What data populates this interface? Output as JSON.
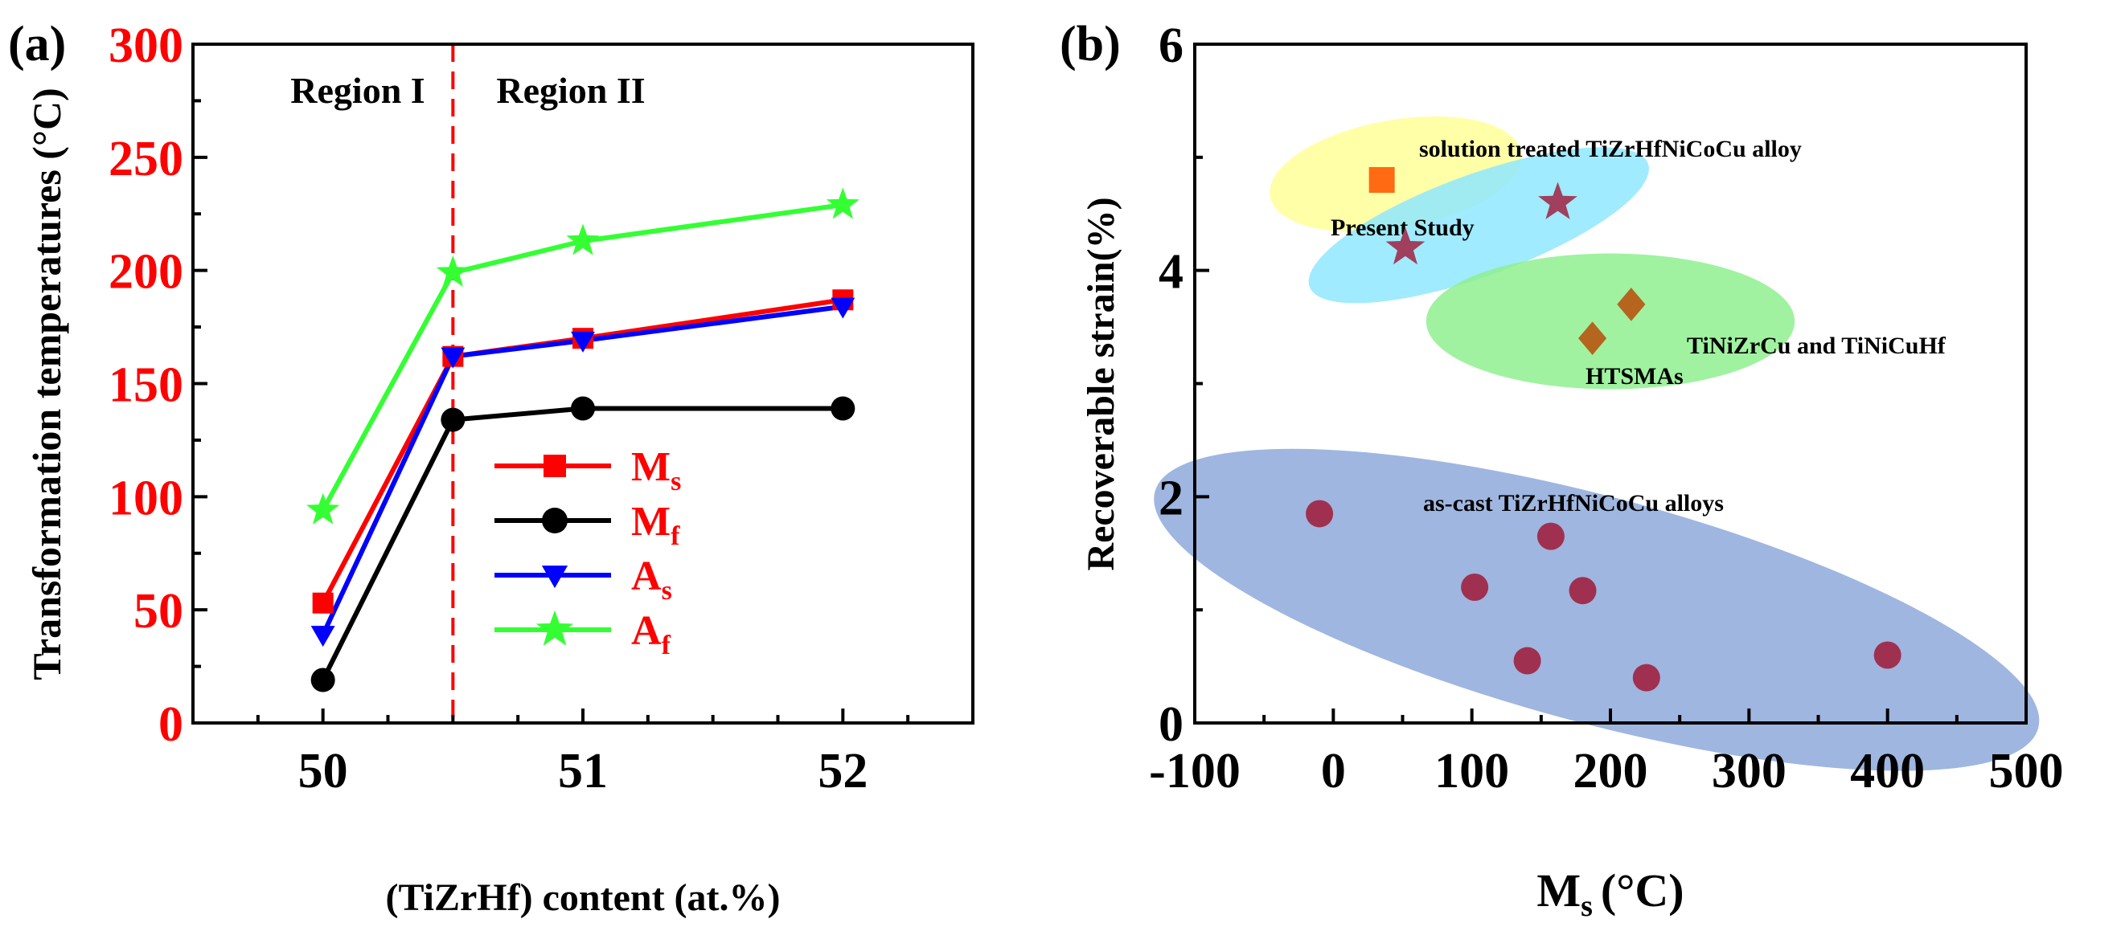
{
  "chart_data": [
    {
      "panel_label": "(a)",
      "type": "line",
      "xlabel": "(TiZrHf) content (at.%)",
      "ylabel": "Transformation temperatures (°C)",
      "xlim": [
        49.5,
        52.5
      ],
      "ylim": [
        0,
        300
      ],
      "x_ticks": [
        "50",
        "51",
        "52"
      ],
      "y_ticks": [
        "0",
        "50",
        "100",
        "150",
        "200",
        "250",
        "300"
      ],
      "x": [
        50,
        50.5,
        51,
        52
      ],
      "divider_x": 50.5,
      "regions": [
        "Region I",
        "Region II"
      ],
      "series": [
        {
          "name": "M",
          "sub": "s",
          "color": "#ff0000",
          "marker": "square",
          "values": [
            53,
            162,
            170,
            187
          ]
        },
        {
          "name": "M",
          "sub": "f",
          "color": "#000000",
          "marker": "circle",
          "values": [
            19,
            134,
            139,
            139
          ]
        },
        {
          "name": "A",
          "sub": "s",
          "color": "#0000ff",
          "marker": "triangle-down",
          "values": [
            39,
            162,
            169,
            184
          ]
        },
        {
          "name": "A",
          "sub": "f",
          "color": "#33ff33",
          "marker": "star",
          "values": [
            94,
            199,
            213,
            229
          ]
        }
      ]
    },
    {
      "panel_label": "(b)",
      "type": "scatter",
      "xlabel": "M",
      "xlabel_sub": "s",
      "xlabel_unit": "(°C)",
      "ylabel": "Recoverable strain(%)",
      "xlim": [
        -100,
        500
      ],
      "ylim": [
        0,
        6
      ],
      "x_ticks": [
        "-100",
        "0",
        "100",
        "200",
        "300",
        "400",
        "500"
      ],
      "y_ticks": [
        "0",
        "2",
        "4",
        "6"
      ],
      "groups": [
        {
          "label": "solution treated TiZrHfNiCoCu alloy",
          "ellipse_color": "#ffff99",
          "marker": "square",
          "marker_color": "#ff6a13",
          "points": [
            {
              "x": 35,
              "y": 4.8
            }
          ]
        },
        {
          "label": "Present Study",
          "ellipse_color": "#8fe8ff",
          "marker": "star",
          "marker_color": "#a0405c",
          "points": [
            {
              "x": 52,
              "y": 4.2
            },
            {
              "x": 162,
              "y": 4.6
            }
          ]
        },
        {
          "label": "TiNiZrCu and TiNiCuHf",
          "label2": "HTSMAs",
          "ellipse_color": "#8ff08f",
          "marker": "diamond",
          "marker_color": "#b5651d",
          "points": [
            {
              "x": 187,
              "y": 3.4
            },
            {
              "x": 215,
              "y": 3.7
            }
          ]
        },
        {
          "label": "as-cast TiZrHfNiCoCu alloys",
          "ellipse_color": "#8ea9db",
          "marker": "circle",
          "marker_color": "#a0304f",
          "points": [
            {
              "x": -10,
              "y": 1.85
            },
            {
              "x": 102,
              "y": 1.2
            },
            {
              "x": 157,
              "y": 1.65
            },
            {
              "x": 180,
              "y": 1.17
            },
            {
              "x": 140,
              "y": 0.55
            },
            {
              "x": 226,
              "y": 0.4
            },
            {
              "x": 400,
              "y": 0.6
            }
          ]
        }
      ]
    }
  ]
}
